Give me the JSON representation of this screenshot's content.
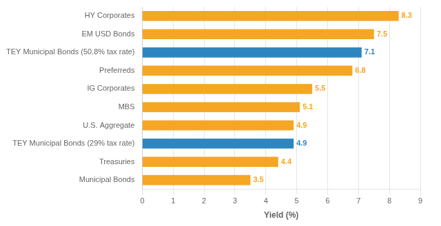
{
  "chart_data": {
    "type": "bar",
    "orientation": "horizontal",
    "categories": [
      "Municipal Bonds",
      "Treasuries",
      "TEY Municipal Bonds (29% tax rate)",
      "U.S. Aggregate",
      "MBS",
      "IG Corporates",
      "Preferreds",
      "TEY Municipal Bonds (50.8% tax rate)",
      "EM USD Bonds",
      "HY Corporates"
    ],
    "values": [
      3.5,
      4.4,
      4.9,
      4.9,
      5.1,
      5.5,
      6.8,
      7.1,
      7.5,
      8.3
    ],
    "colors": [
      "#F5A623",
      "#F5A623",
      "#2E86C1",
      "#F5A623",
      "#F5A623",
      "#F5A623",
      "#F5A623",
      "#2E86C1",
      "#F5A623",
      "#F5A623"
    ],
    "xlabel": "Yield (%)",
    "xlim": [
      0,
      9
    ],
    "xticks": [
      0,
      1,
      2,
      3,
      4,
      5,
      6,
      7,
      8,
      9
    ],
    "grid": true,
    "data_labels": true
  }
}
